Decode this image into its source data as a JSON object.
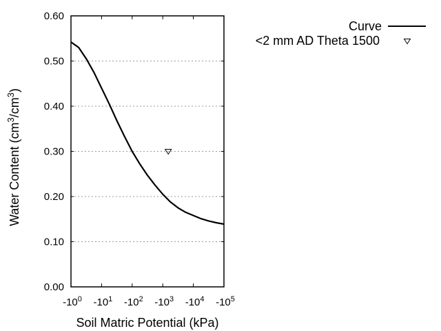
{
  "chart_data": {
    "type": "line",
    "title": "",
    "xlabel": "Soil Matric Potential (kPa)",
    "ylabel": "Water Content (cm3/cm3)",
    "ylabel_parts": {
      "pre": "Water Content (cm",
      "sup1": "3",
      "mid": "/cm",
      "sup2": "3",
      "post": ")"
    },
    "x_scale": "log",
    "x_ticks": [
      {
        "base": "-10",
        "exp": "0"
      },
      {
        "base": "-10",
        "exp": "1"
      },
      {
        "base": "-10",
        "exp": "2"
      },
      {
        "base": "-10",
        "exp": "3"
      },
      {
        "base": "-10",
        "exp": "4"
      },
      {
        "base": "-10",
        "exp": "5"
      }
    ],
    "xlim": [
      -1,
      -100000
    ],
    "y_ticks": [
      "0.00",
      "0.10",
      "0.20",
      "0.30",
      "0.40",
      "0.50",
      "0.60"
    ],
    "ylim": [
      0.0,
      0.6
    ],
    "grid": {
      "y": true,
      "style": "dotted",
      "color": "#999999"
    },
    "legend_position": "top-right-outside",
    "series": [
      {
        "name": "Curve",
        "kind": "line",
        "color": "#000000",
        "x_log10_abs": [
          0,
          0.25,
          0.5,
          0.75,
          1.0,
          1.25,
          1.5,
          1.75,
          2.0,
          2.25,
          2.5,
          2.75,
          3.0,
          3.25,
          3.5,
          3.75,
          4.0,
          4.25,
          4.5,
          4.75,
          5.0
        ],
        "values": [
          0.542,
          0.53,
          0.505,
          0.475,
          0.44,
          0.405,
          0.368,
          0.333,
          0.3,
          0.272,
          0.247,
          0.225,
          0.205,
          0.188,
          0.175,
          0.165,
          0.158,
          0.151,
          0.146,
          0.142,
          0.139
        ]
      },
      {
        "name": "<2 mm AD Theta 1500",
        "kind": "scatter",
        "marker": "triangle-down-open",
        "color": "#000000",
        "x": [
          -1500
        ],
        "x_log10_abs": [
          3.18
        ],
        "values": [
          0.3
        ]
      }
    ]
  },
  "legend": {
    "items": [
      {
        "label": "Curve"
      },
      {
        "label": "<2 mm AD Theta 1500"
      }
    ]
  }
}
